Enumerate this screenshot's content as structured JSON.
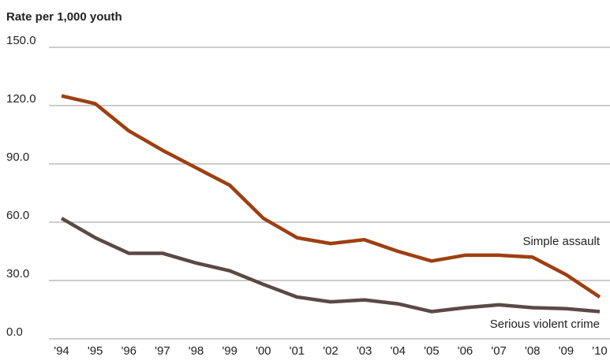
{
  "chart_data": {
    "type": "line",
    "title": "Rate per 1,000 youth",
    "categories": [
      "'94",
      "'95",
      "'96",
      "'97",
      "'98",
      "'99",
      "'00",
      "'01",
      "'02",
      "'03",
      "'04",
      "'05",
      "'06",
      "'07",
      "'08",
      "'09",
      "'10"
    ],
    "series": [
      {
        "name": "Simple assault",
        "color": "#9e3f10",
        "values": [
          125,
          121,
          107,
          97,
          88,
          79,
          62,
          52,
          49,
          51,
          45,
          40,
          43,
          43,
          42,
          33,
          21.5
        ]
      },
      {
        "name": "Serious violent crime",
        "color": "#5b4945",
        "values": [
          62,
          52,
          44,
          44,
          39,
          35,
          28,
          21.5,
          19,
          20,
          18,
          14,
          16,
          17.5,
          16,
          15.5,
          14
        ]
      }
    ],
    "ylim": [
      0,
      150
    ],
    "yticks": [
      {
        "value": 0,
        "label": "0.0"
      },
      {
        "value": 30,
        "label": "30.0"
      },
      {
        "value": 60,
        "label": "60.0"
      },
      {
        "value": 90,
        "label": "90.0"
      },
      {
        "value": 120,
        "label": "120.0"
      },
      {
        "value": 150,
        "label": "150.0"
      }
    ],
    "grid": true
  }
}
